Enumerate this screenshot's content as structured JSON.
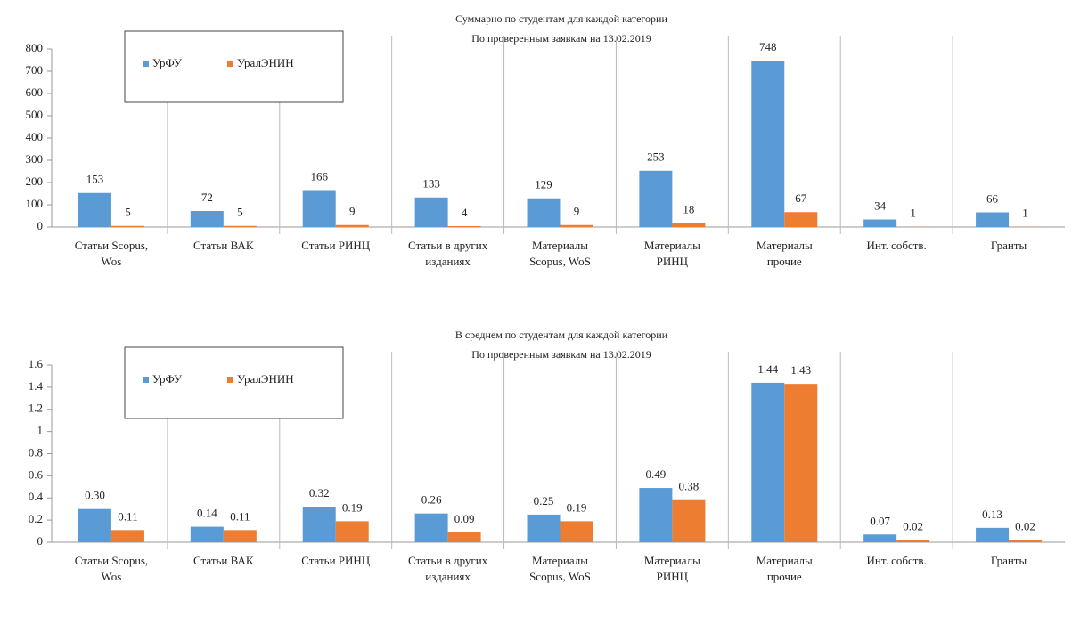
{
  "chart_data": [
    {
      "type": "bar",
      "title": "Суммарно по студентам для каждой категории",
      "subtitle": "По проверенным заявкам на 13.02.2019",
      "categories": [
        "Статьи Scopus, Wos",
        "Статьи ВАК",
        "Статьи РИНЦ",
        "Статьи в других изданиях",
        "Материалы Scopus, WoS",
        "Материалы РИНЦ",
        "Материалы прочие",
        "Инт. собств.",
        "Гранты"
      ],
      "series": [
        {
          "name": "УрФУ",
          "color": "#5b9bd5",
          "values": [
            153,
            72,
            166,
            133,
            129,
            253,
            748,
            34,
            66
          ]
        },
        {
          "name": "УралЭНИН",
          "color": "#ed7d31",
          "values": [
            5,
            5,
            9,
            4,
            9,
            18,
            67,
            1,
            1
          ]
        }
      ],
      "ylim": [
        0,
        800
      ],
      "yticks": [
        0,
        100,
        200,
        300,
        400,
        500,
        600,
        700,
        800
      ],
      "legend": "upper left"
    },
    {
      "type": "bar",
      "title": "В среднем по студентам для каждой категории",
      "subtitle": "По проверенным заявкам на 13.02.2019",
      "categories": [
        "Статьи Scopus, Wos",
        "Статьи ВАК",
        "Статьи РИНЦ",
        "Статьи в других изданиях",
        "Материалы Scopus, WoS",
        "Материалы РИНЦ",
        "Материалы прочие",
        "Инт. собств.",
        "Гранты"
      ],
      "series": [
        {
          "name": "УрФУ",
          "color": "#5b9bd5",
          "values": [
            0.3,
            0.14,
            0.32,
            0.26,
            0.25,
            0.49,
            1.44,
            0.07,
            0.13
          ],
          "value_labels": [
            "0.30",
            "0.14",
            "0.32",
            "0.26",
            "0.25",
            "0.49",
            "1.44",
            "0.07",
            "0.13"
          ]
        },
        {
          "name": "УралЭНИН",
          "color": "#ed7d31",
          "values": [
            0.11,
            0.11,
            0.19,
            0.09,
            0.19,
            0.38,
            1.43,
            0.02,
            0.02
          ],
          "value_labels": [
            "0.11",
            "0.11",
            "0.19",
            "0.09",
            "0.19",
            "0.38",
            "1.43",
            "0.02",
            "0.02"
          ]
        }
      ],
      "ylim": [
        0,
        1.6
      ],
      "yticks": [
        0,
        0.2,
        0.4,
        0.6,
        0.8,
        1,
        1.2,
        1.4,
        1.6
      ],
      "legend": "upper left"
    }
  ]
}
